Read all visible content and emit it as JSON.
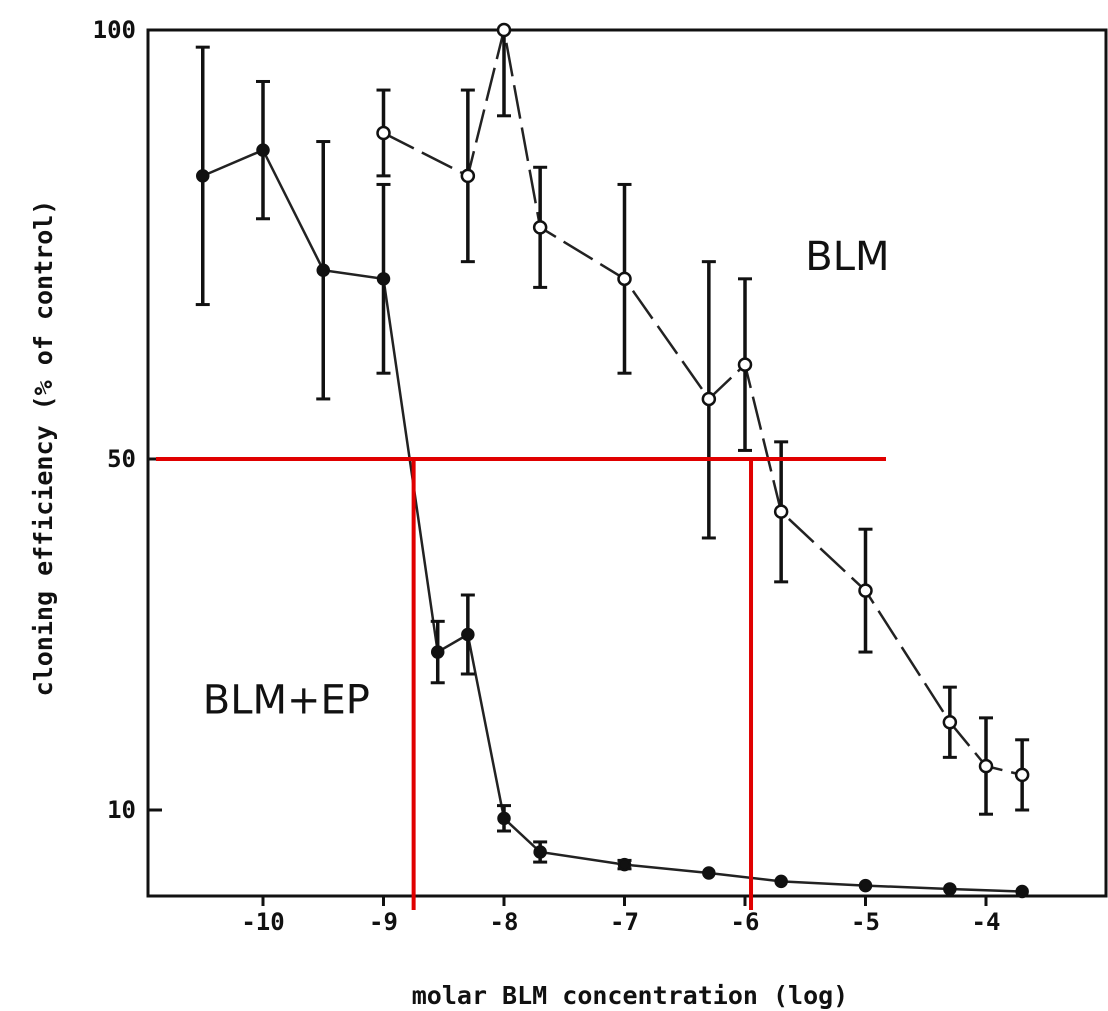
{
  "chart_data": {
    "type": "line",
    "xlabel": "molar BLM concentration (log)",
    "ylabel": "cloning efficiency (% of control)",
    "xlim": [
      -11,
      -3
    ],
    "y_ticks": [
      {
        "label": "100",
        "value": 100
      },
      {
        "label": "50",
        "value": 50
      },
      {
        "label": "10",
        "value": 10
      }
    ],
    "x_ticks": [
      {
        "label": "-10",
        "value": -10
      },
      {
        "label": "-9",
        "value": -9
      },
      {
        "label": "-8",
        "value": -8
      },
      {
        "label": "-7",
        "value": -7
      },
      {
        "label": "-6",
        "value": -6
      },
      {
        "label": "-5",
        "value": -5
      },
      {
        "label": "-4",
        "value": -4
      }
    ],
    "grid": false,
    "series": [
      {
        "name": "BLM",
        "marker": "open-circle",
        "line_style": "dashed",
        "points": [
          {
            "x": -9.0,
            "y": 88,
            "err": 5
          },
          {
            "x": -8.3,
            "y": 83,
            "err": 10
          },
          {
            "x": -8.0,
            "y": 100,
            "err": 10
          },
          {
            "x": -7.7,
            "y": 77,
            "err": 7
          },
          {
            "x": -7.0,
            "y": 71,
            "err": 11
          },
          {
            "x": -6.3,
            "y": 57,
            "err": 16
          },
          {
            "x": -6.0,
            "y": 61,
            "err": 10
          },
          {
            "x": -5.7,
            "y": 44,
            "err": 8
          },
          {
            "x": -5.0,
            "y": 35,
            "err": 7
          },
          {
            "x": -4.3,
            "y": 20,
            "err": 4
          },
          {
            "x": -4.0,
            "y": 15,
            "err": 5.5
          },
          {
            "x": -3.7,
            "y": 14,
            "err": 4
          }
        ]
      },
      {
        "name": "BLM+EP",
        "marker": "filled-circle",
        "line_style": "solid",
        "points": [
          {
            "x": -10.5,
            "y": 83,
            "err": 15
          },
          {
            "x": -10.0,
            "y": 86,
            "err": 8
          },
          {
            "x": -9.5,
            "y": 72,
            "err": 15
          },
          {
            "x": -9.0,
            "y": 71,
            "err": 11
          },
          {
            "x": -8.55,
            "y": 28,
            "err": 3.5
          },
          {
            "x": -8.3,
            "y": 30,
            "err": 4.5
          },
          {
            "x": -8.0,
            "y": 9,
            "err": 1.5
          },
          {
            "x": -7.7,
            "y": 5,
            "err": 1.2
          },
          {
            "x": -7.0,
            "y": 3.5,
            "err": 0.5
          },
          {
            "x": -6.3,
            "y": 2.5,
            "err": 0
          },
          {
            "x": -5.7,
            "y": 1.5,
            "err": 0
          },
          {
            "x": -5.0,
            "y": 1,
            "err": 0
          },
          {
            "x": -4.3,
            "y": 0.6,
            "err": 0
          },
          {
            "x": -3.7,
            "y": 0.3,
            "err": 0
          }
        ]
      }
    ],
    "annotations": [
      {
        "text": "BLM",
        "x": -5.5,
        "y": 72
      },
      {
        "text": "BLM+EP",
        "x": -10.5,
        "y": 21
      }
    ],
    "reference_lines": {
      "color": "#e00000",
      "horizontal_y": 50,
      "verticals": [
        {
          "x": -8.75,
          "meaning": "BLM+EP at 50%"
        },
        {
          "x": -5.95,
          "meaning": "BLM at 50%"
        }
      ]
    }
  }
}
